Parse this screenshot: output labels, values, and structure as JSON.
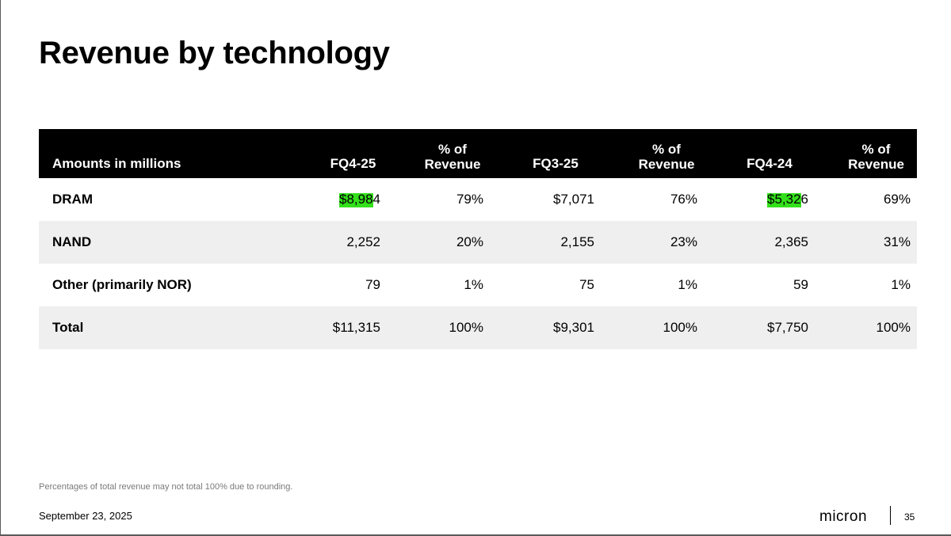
{
  "title": "Revenue by technology",
  "table": {
    "headers": [
      "Amounts in millions",
      "FQ4-25",
      "% of\nRevenue",
      "FQ3-25",
      "% of\nRevenue",
      "FQ4-24",
      "% of\nRevenue"
    ],
    "rows": [
      {
        "label": "DRAM",
        "values": [
          "$8,984",
          "79%",
          "$7,071",
          "76%",
          "$5,326",
          "69%"
        ]
      },
      {
        "label": "NAND",
        "values": [
          "2,252",
          "20%",
          "2,155",
          "23%",
          "2,365",
          "31%"
        ]
      },
      {
        "label": "Other (primarily NOR)",
        "values": [
          "79",
          "1%",
          "75",
          "1%",
          "59",
          "1%"
        ]
      },
      {
        "label": "Total",
        "values": [
          "$11,315",
          "100%",
          "$9,301",
          "100%",
          "$7,750",
          "100%"
        ]
      }
    ],
    "highlight_color": "#33e01b"
  },
  "footnote": "Percentages of total revenue may not total 100% due to rounding.",
  "date": "September 23, 2025",
  "brand": "micron",
  "page_number": "35"
}
